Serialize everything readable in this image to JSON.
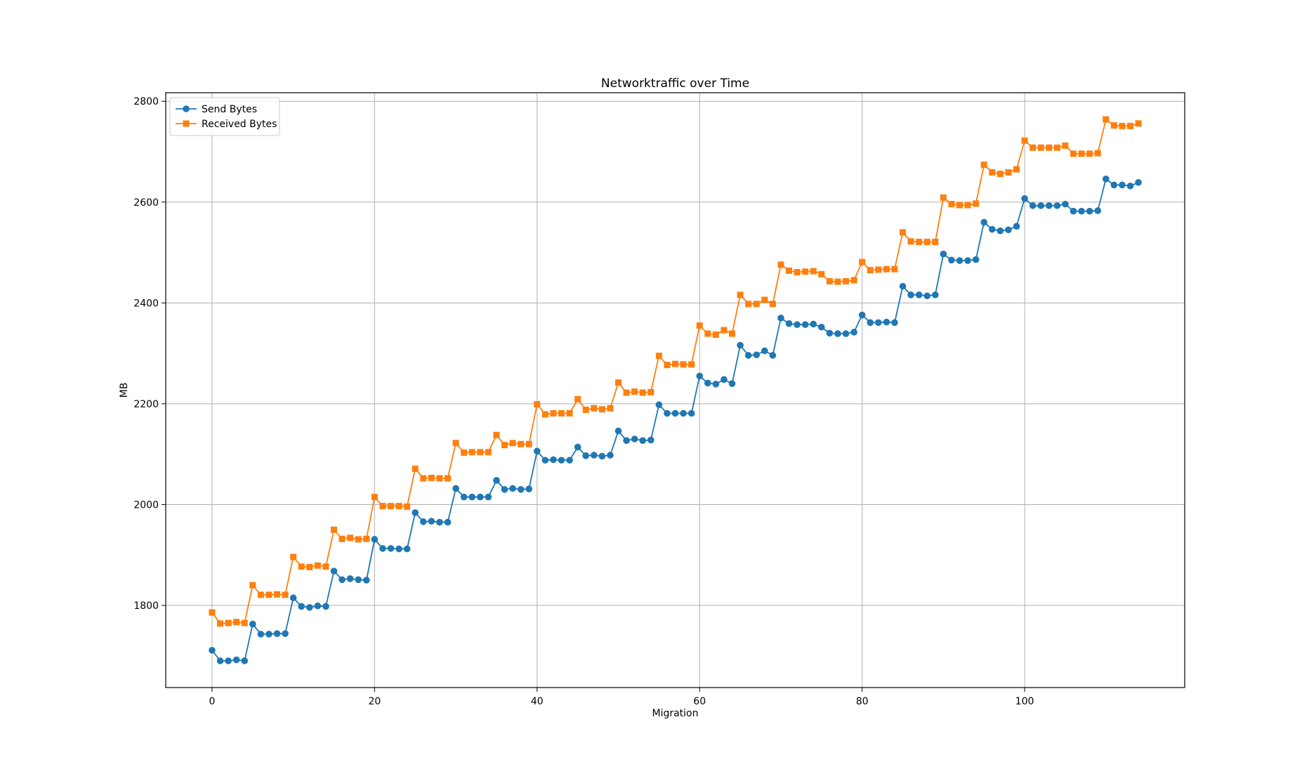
{
  "chart_data": {
    "type": "line",
    "title": "Networktraffic over Time",
    "xlabel": "Migration",
    "ylabel": "MB",
    "xlim": [
      -5.7,
      119.7
    ],
    "ylim": [
      1637,
      2817
    ],
    "xticks": [
      0,
      20,
      40,
      60,
      80,
      100
    ],
    "yticks": [
      1800,
      2000,
      2200,
      2400,
      2600,
      2800
    ],
    "grid": true,
    "legend_position": "top-left",
    "x": [
      0,
      1,
      2,
      3,
      4,
      5,
      6,
      7,
      8,
      9,
      10,
      11,
      12,
      13,
      14,
      15,
      16,
      17,
      18,
      19,
      20,
      21,
      22,
      23,
      24,
      25,
      26,
      27,
      28,
      29,
      30,
      31,
      32,
      33,
      34,
      35,
      36,
      37,
      38,
      39,
      40,
      41,
      42,
      43,
      44,
      45,
      46,
      47,
      48,
      49,
      50,
      51,
      52,
      53,
      54,
      55,
      56,
      57,
      58,
      59,
      60,
      61,
      62,
      63,
      64,
      65,
      66,
      67,
      68,
      69,
      70,
      71,
      72,
      73,
      74,
      75,
      76,
      77,
      78,
      79,
      80,
      81,
      82,
      83,
      84,
      85,
      86,
      87,
      88,
      89,
      90,
      91,
      92,
      93,
      94,
      95,
      96,
      97,
      98,
      99,
      100,
      101,
      102,
      103,
      104,
      105,
      106,
      107,
      108,
      109,
      110,
      111,
      112,
      113,
      114
    ],
    "series": [
      {
        "name": "Send Bytes",
        "color": "#1f77b4",
        "marker": "circle",
        "values": [
          1711,
          1690,
          1690,
          1692,
          1690,
          1763,
          1743,
          1743,
          1744,
          1744,
          1815,
          1798,
          1796,
          1799,
          1798,
          1868,
          1851,
          1853,
          1851,
          1850,
          1931,
          1913,
          1913,
          1912,
          1912,
          1984,
          1966,
          1967,
          1965,
          1965,
          2032,
          2015,
          2015,
          2015,
          2015,
          2048,
          2030,
          2032,
          2030,
          2031,
          2106,
          2088,
          2089,
          2088,
          2088,
          2114,
          2097,
          2098,
          2096,
          2098,
          2146,
          2127,
          2130,
          2127,
          2128,
          2198,
          2181,
          2181,
          2181,
          2181,
          2255,
          2241,
          2239,
          2248,
          2240,
          2316,
          2296,
          2297,
          2305,
          2296,
          2370,
          2359,
          2357,
          2357,
          2358,
          2352,
          2340,
          2339,
          2339,
          2342,
          2376,
          2361,
          2361,
          2362,
          2361,
          2433,
          2416,
          2416,
          2414,
          2416,
          2497,
          2485,
          2484,
          2484,
          2486,
          2560,
          2546,
          2543,
          2545,
          2552,
          2607,
          2593,
          2593,
          2593,
          2593,
          2596,
          2582,
          2582,
          2582,
          2583,
          2646,
          2634,
          2634,
          2632,
          2639
        ]
      },
      {
        "name": "Received Bytes",
        "color": "#ff7f0e",
        "marker": "square",
        "values": [
          1786,
          1764,
          1765,
          1767,
          1765,
          1840,
          1821,
          1821,
          1822,
          1821,
          1896,
          1877,
          1876,
          1879,
          1877,
          1950,
          1932,
          1934,
          1931,
          1932,
          2015,
          1997,
          1997,
          1997,
          1996,
          2071,
          2052,
          2053,
          2052,
          2052,
          2122,
          2103,
          2104,
          2104,
          2104,
          2138,
          2118,
          2122,
          2120,
          2120,
          2199,
          2179,
          2181,
          2181,
          2181,
          2209,
          2188,
          2191,
          2189,
          2191,
          2242,
          2222,
          2224,
          2222,
          2223,
          2295,
          2277,
          2279,
          2278,
          2278,
          2355,
          2339,
          2337,
          2346,
          2339,
          2416,
          2398,
          2398,
          2406,
          2398,
          2476,
          2464,
          2461,
          2462,
          2463,
          2457,
          2443,
          2442,
          2443,
          2445,
          2481,
          2465,
          2466,
          2467,
          2467,
          2540,
          2522,
          2521,
          2521,
          2521,
          2609,
          2596,
          2594,
          2594,
          2597,
          2674,
          2659,
          2656,
          2659,
          2665,
          2722,
          2708,
          2708,
          2708,
          2708,
          2712,
          2696,
          2696,
          2696,
          2697,
          2764,
          2752,
          2751,
          2751,
          2756
        ]
      }
    ]
  }
}
